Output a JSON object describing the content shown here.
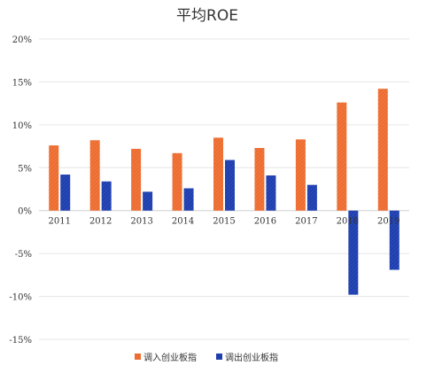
{
  "chart_data": {
    "type": "bar",
    "title": "平均ROE",
    "xlabel": "",
    "ylabel": "",
    "categories": [
      "2011",
      "2012",
      "2013",
      "2014",
      "2015",
      "2016",
      "2017",
      "2018",
      "2019"
    ],
    "series": [
      {
        "name": "调入创业板指",
        "color": "#ED6C30",
        "values": [
          7.6,
          8.2,
          7.2,
          6.7,
          8.5,
          7.3,
          8.3,
          12.6,
          14.2
        ]
      },
      {
        "name": "调出创业板指",
        "color": "#1F3FAE",
        "values": [
          4.2,
          3.4,
          2.2,
          2.6,
          5.9,
          4.1,
          3.0,
          -9.8,
          -6.9
        ]
      }
    ],
    "ylim": [
      -15,
      20
    ],
    "yticks": [
      20,
      15,
      10,
      5,
      0,
      -5,
      -10,
      -15
    ],
    "ytick_labels": [
      "20%",
      "15%",
      "10%",
      "5%",
      "0%",
      "-5%",
      "-10%",
      "-15%"
    ],
    "grid": true,
    "legend_position": "bottom"
  }
}
